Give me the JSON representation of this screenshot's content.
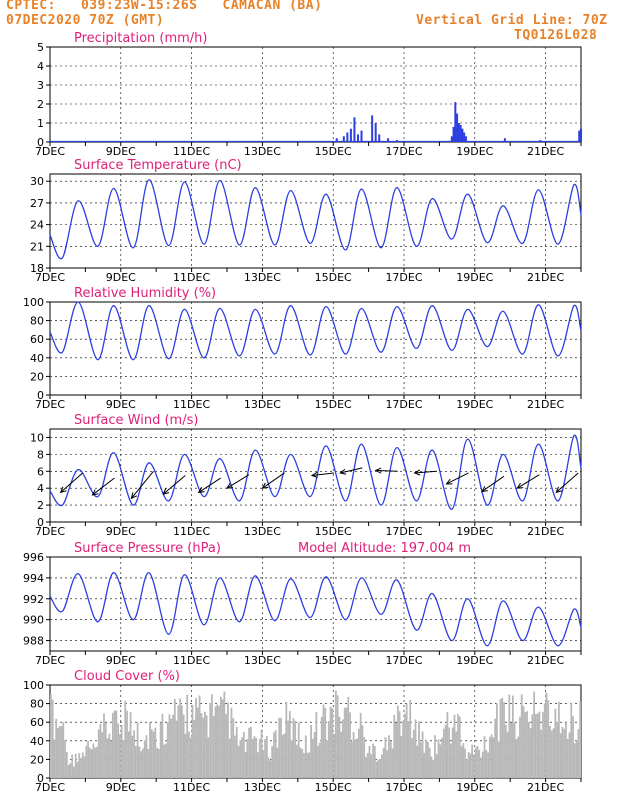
{
  "header": {
    "line1": "CPTEC:   039:23W-15:26S   CAMACAN (BA)",
    "line2": "07DEC2020 70Z (GMT)",
    "right1": "Vertical Grid Line: 70Z",
    "right2": "TQ0126L028"
  },
  "colors": {
    "header": "#e8822a",
    "title": "#e0207a",
    "line": "#2c3fe0",
    "cloud": "#b8b8b8",
    "arrow": "#000000"
  },
  "x_labels": [
    "7DEC",
    "9DEC",
    "11DEC",
    "13DEC",
    "15DEC",
    "17DEC",
    "19DEC",
    "21DEC"
  ],
  "chart_data": [
    {
      "type": "bar",
      "title": "Precipitation (mm/h)",
      "ylim": [
        0,
        5
      ],
      "yticks": [
        0,
        1,
        2,
        3,
        4,
        5
      ],
      "x_unit": "days since 7DEC",
      "points": [
        [
          8.1,
          0.2
        ],
        [
          8.3,
          0.3
        ],
        [
          8.4,
          0.5
        ],
        [
          8.5,
          0.7
        ],
        [
          8.6,
          1.3
        ],
        [
          8.7,
          0.4
        ],
        [
          8.8,
          0.6
        ],
        [
          9.1,
          1.4
        ],
        [
          9.2,
          1.0
        ],
        [
          9.3,
          0.4
        ],
        [
          9.55,
          0.2
        ],
        [
          9.8,
          0.1
        ],
        [
          11.35,
          0.3
        ],
        [
          11.4,
          0.8
        ],
        [
          11.45,
          2.1
        ],
        [
          11.5,
          1.5
        ],
        [
          11.55,
          1.0
        ],
        [
          11.6,
          0.9
        ],
        [
          11.65,
          0.7
        ],
        [
          11.7,
          0.5
        ],
        [
          11.75,
          0.3
        ],
        [
          12.85,
          0.2
        ],
        [
          13.85,
          0.1
        ],
        [
          14.95,
          0.6
        ],
        [
          15.0,
          0.7
        ]
      ]
    },
    {
      "type": "line",
      "title": "Surface Temperature (nC)",
      "ylim": [
        18,
        31
      ],
      "yticks": [
        18,
        21,
        24,
        27,
        30
      ],
      "x_unit": "days since 7DEC",
      "min": [
        19.4,
        21.0,
        20.8,
        21.1,
        21.3,
        21.2,
        21.2,
        21.4,
        20.5,
        20.8,
        21.0,
        22.0,
        21.5,
        21.4,
        21.3
      ],
      "max": [
        27.3,
        29.0,
        30.2,
        29.9,
        30.1,
        29.1,
        28.7,
        28.2,
        28.9,
        29.1,
        27.6,
        28.2,
        26.6,
        28.8,
        29.5
      ]
    },
    {
      "type": "line",
      "title": "Relative Humidity (%)",
      "ylim": [
        0,
        100
      ],
      "yticks": [
        0,
        20,
        40,
        60,
        80,
        100
      ],
      "x_unit": "days since 7DEC",
      "min": [
        46,
        38,
        38,
        39,
        40,
        42,
        44,
        43,
        44,
        46,
        50,
        48,
        52,
        44,
        42
      ],
      "max": [
        100,
        96,
        96,
        92,
        93,
        92,
        96,
        95,
        93,
        95,
        96,
        92,
        90,
        97,
        96
      ]
    },
    {
      "type": "line",
      "title": "Surface Wind (m/s)",
      "ylim": [
        0,
        11
      ],
      "yticks": [
        0,
        2,
        4,
        6,
        8,
        10
      ],
      "x_unit": "days since 7DEC",
      "min": [
        2.0,
        3.0,
        2.0,
        2.5,
        3.0,
        2.5,
        3.0,
        3.0,
        2.5,
        2.0,
        2.5,
        1.5,
        2.0,
        2.5,
        2.5
      ],
      "max": [
        6.2,
        8.2,
        7.0,
        8.0,
        7.5,
        8.5,
        8.0,
        9.0,
        9.2,
        8.8,
        8.5,
        9.8,
        8.0,
        9.2,
        10.2
      ]
    },
    {
      "type": "line",
      "title": "Surface Pressure (hPa)",
      "note": "Model Altitude: 197.004 m",
      "ylim": [
        987,
        996
      ],
      "yticks": [
        988,
        990,
        992,
        994,
        996
      ],
      "x_unit": "days since 7DEC",
      "max": [
        994.4,
        994.5,
        994.5,
        994.3,
        994.0,
        994.2,
        993.9,
        994.1,
        994.0,
        993.8,
        992.5,
        992.0,
        991.8,
        991.2,
        991.0
      ],
      "min": [
        990.8,
        989.8,
        990.0,
        988.6,
        989.5,
        989.8,
        989.9,
        990.2,
        990.0,
        990.5,
        989.0,
        988.0,
        987.5,
        988.0,
        987.5
      ]
    },
    {
      "type": "bar",
      "title": "Cloud Cover (%)",
      "ylim": [
        0,
        100
      ],
      "yticks": [
        0,
        20,
        40,
        60,
        80,
        100
      ],
      "x_unit": "days since 7DEC",
      "envelope": [
        90,
        80,
        30,
        25,
        40,
        40,
        70,
        70,
        85,
        80,
        55,
        60,
        60,
        75,
        85,
        88,
        92,
        88,
        90,
        90,
        95,
        55,
        50,
        60,
        50,
        40,
        85,
        80,
        60,
        45,
        75,
        80,
        95,
        90,
        85,
        70,
        35,
        40,
        45,
        75,
        90,
        80,
        50,
        40,
        55,
        75,
        75,
        30,
        40,
        45,
        75,
        88,
        90,
        90,
        90,
        95,
        92,
        80,
        85,
        80,
        90
      ]
    }
  ]
}
